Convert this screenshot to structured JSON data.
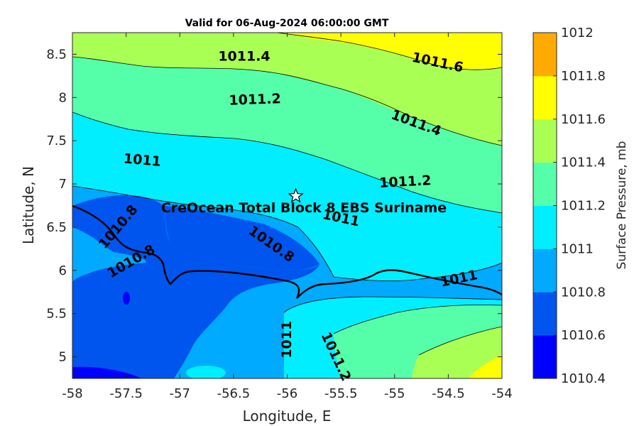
{
  "chart_data": {
    "type": "contour",
    "title": "Valid for 06-Aug-2024 06:00:00 GMT",
    "xlabel": "Longitude, E",
    "ylabel": "Latitude, N",
    "xlim": [
      -58,
      -54
    ],
    "ylim": [
      4.75,
      8.75
    ],
    "x_ticks": [
      -58,
      -57.5,
      -57,
      -56.5,
      -56,
      -55.5,
      -55,
      -54.5,
      -54
    ],
    "x_tick_labels": [
      "-58",
      "-57.5",
      "-57",
      "-56.5",
      "-56",
      "-55.5",
      "-55",
      "-54.5",
      "-54"
    ],
    "y_ticks": [
      5,
      5.5,
      6,
      6.5,
      7,
      7.5,
      8,
      8.5
    ],
    "y_tick_labels": [
      "5",
      "5.5",
      "6",
      "6.5",
      "7",
      "7.5",
      "8",
      "8.5"
    ],
    "colorbar": {
      "label": "Surface Pressure, mb",
      "levels": [
        1010.4,
        1010.6,
        1010.8,
        1011,
        1011.2,
        1011.4,
        1011.6,
        1011.8,
        1012
      ],
      "level_labels": [
        "1010.4",
        "1010.6",
        "1010.8",
        "1011",
        "1011.2",
        "1011.4",
        "1011.6",
        "1011.8",
        "1012"
      ],
      "colors": [
        "#0000ff",
        "#0055ee",
        "#00aaff",
        "#00eeff",
        "#55ffaa",
        "#aaff55",
        "#ffff00",
        "#ffaa00",
        "#ff5500"
      ]
    },
    "contour_labels": [
      {
        "text": "1011.6",
        "lon": -54.6,
        "lat": 8.4,
        "rotation": 12
      },
      {
        "text": "1011.4",
        "lon": -56.4,
        "lat": 8.47,
        "rotation": 0
      },
      {
        "text": "1011.2",
        "lon": -56.3,
        "lat": 7.97,
        "rotation": -2
      },
      {
        "text": "1011.4",
        "lon": -54.8,
        "lat": 7.7,
        "rotation": 20
      },
      {
        "text": "1011",
        "lon": -57.35,
        "lat": 7.27,
        "rotation": 5
      },
      {
        "text": "1011.2",
        "lon": -54.9,
        "lat": 7.02,
        "rotation": -3
      },
      {
        "text": "1011",
        "lon": -55.5,
        "lat": 6.6,
        "rotation": 12
      },
      {
        "text": "1010.8",
        "lon": -57.57,
        "lat": 6.5,
        "rotation": -50
      },
      {
        "text": "1010.8",
        "lon": -56.15,
        "lat": 6.3,
        "rotation": 35
      },
      {
        "text": "1010.8",
        "lon": -57.45,
        "lat": 6.1,
        "rotation": -30
      },
      {
        "text": "1011",
        "lon": -54.4,
        "lat": 5.9,
        "rotation": -12
      },
      {
        "text": "1011",
        "lon": -56.0,
        "lat": 5.2,
        "rotation": -90
      },
      {
        "text": "1011.2",
        "lon": -55.55,
        "lat": 5.0,
        "rotation": 65
      }
    ],
    "site": {
      "name": "CreOcean Total Block 8 EBS Suriname",
      "lon": -55.92,
      "lat": 6.86
    }
  }
}
